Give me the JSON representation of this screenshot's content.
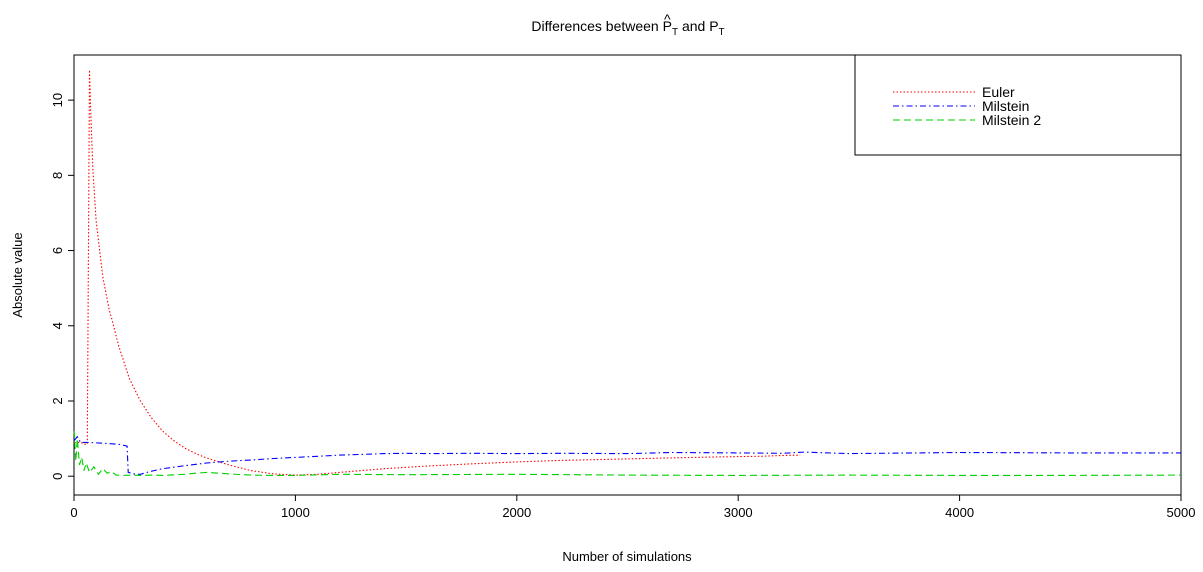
{
  "chart_data": {
    "type": "line",
    "title_main": "Differences between ",
    "title_p_hat": "P",
    "title_hat": "^",
    "title_sub1": "T",
    "title_and": " and ",
    "title_p": "P",
    "title_sub2": "T",
    "xlabel": "Number of simulations",
    "ylabel": "Absolute value",
    "xlim": [
      0,
      5000
    ],
    "ylim": [
      -0.5,
      11.2
    ],
    "x_ticks": [
      0,
      1000,
      2000,
      3000,
      4000,
      5000
    ],
    "x_tick_labels": [
      "0",
      "1000",
      "2000",
      "3000",
      "4000",
      "5000"
    ],
    "y_ticks": [
      0,
      2,
      4,
      6,
      8,
      10
    ],
    "y_tick_labels": [
      "0",
      "2",
      "4",
      "6",
      "8",
      "10"
    ],
    "grid": false,
    "legend_position": "top-right",
    "series": [
      {
        "name": "Euler",
        "color": "#ff0000",
        "dash": "1.5,2",
        "x": [
          1,
          10,
          30,
          50,
          60,
          65,
          70,
          75,
          85,
          100,
          130,
          160,
          170,
          200,
          250,
          300,
          350,
          400,
          450,
          500,
          550,
          600,
          700,
          800,
          900,
          1000,
          1100,
          1200,
          1400,
          1600,
          1800,
          2000,
          2200,
          2500,
          2800,
          3000,
          3100,
          3200,
          3280
        ],
        "y": [
          0.9,
          0.9,
          0.9,
          0.85,
          0.85,
          5.8,
          10.8,
          9.8,
          8.2,
          6.8,
          5.3,
          4.4,
          4.2,
          3.5,
          2.6,
          2.0,
          1.55,
          1.2,
          0.95,
          0.75,
          0.6,
          0.48,
          0.3,
          0.15,
          0.06,
          0.03,
          0.05,
          0.1,
          0.2,
          0.27,
          0.33,
          0.38,
          0.42,
          0.46,
          0.5,
          0.52,
          0.53,
          0.55,
          0.56
        ]
      },
      {
        "name": "Milstein",
        "color": "#0000ff",
        "dash": "6,3,1.5,3",
        "x": [
          1,
          15,
          30,
          60,
          120,
          200,
          240,
          245,
          260,
          280,
          300,
          340,
          400,
          500,
          600,
          700,
          800,
          900,
          1000,
          1100,
          1200,
          1300,
          1400,
          1500,
          1600,
          1800,
          2000,
          2200,
          2500,
          2700,
          3000,
          3200,
          3300,
          3500,
          4000,
          4500,
          5000
        ],
        "y": [
          0.95,
          1.05,
          0.9,
          0.9,
          0.88,
          0.85,
          0.8,
          0.1,
          0.08,
          0.05,
          0.05,
          0.12,
          0.2,
          0.28,
          0.35,
          0.4,
          0.43,
          0.47,
          0.5,
          0.53,
          0.56,
          0.58,
          0.6,
          0.61,
          0.6,
          0.61,
          0.6,
          0.61,
          0.6,
          0.63,
          0.62,
          0.61,
          0.64,
          0.6,
          0.63,
          0.62,
          0.62
        ]
      },
      {
        "name": "Milstein 2",
        "color": "#00d000",
        "dash": "7,4",
        "x": [
          1,
          8,
          15,
          25,
          35,
          45,
          55,
          70,
          90,
          110,
          130,
          150,
          170,
          190,
          220,
          260,
          300,
          350,
          400,
          500,
          550,
          600,
          700,
          800,
          900,
          1000,
          1200,
          1500,
          2000,
          2500,
          3000,
          3500,
          4000,
          4500,
          5000
        ],
        "y": [
          1.2,
          0.4,
          1.0,
          0.3,
          0.5,
          0.15,
          0.35,
          0.1,
          0.25,
          0.05,
          0.2,
          0.08,
          0.12,
          0.03,
          0.02,
          0.03,
          0.02,
          0.03,
          0.02,
          0.05,
          0.08,
          0.1,
          0.06,
          0.03,
          0.02,
          0.02,
          0.05,
          0.04,
          0.05,
          0.03,
          0.02,
          0.03,
          0.02,
          0.02,
          0.03
        ]
      }
    ]
  }
}
